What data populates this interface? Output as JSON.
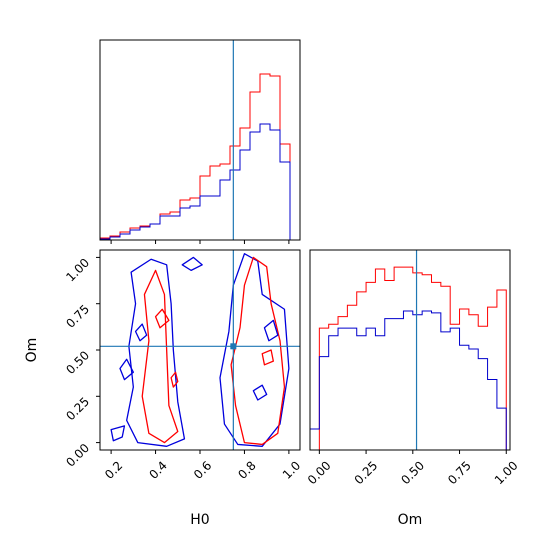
{
  "chart_data": [
    {
      "type": "histogram",
      "panel": "H0 marginal",
      "x_range": [
        0.15,
        1.05
      ],
      "truth": 0.75,
      "series": [
        {
          "color": "#ff0000",
          "bin_edges": [
            0.15,
            0.195,
            0.24,
            0.285,
            0.33,
            0.375,
            0.42,
            0.465,
            0.51,
            0.555,
            0.6,
            0.645,
            0.69,
            0.735,
            0.78,
            0.825,
            0.87,
            0.915,
            0.96,
            1.005
          ],
          "counts": [
            0.01,
            0.02,
            0.04,
            0.06,
            0.07,
            0.08,
            0.13,
            0.14,
            0.2,
            0.21,
            0.32,
            0.37,
            0.38,
            0.47,
            0.56,
            0.74,
            0.83,
            0.82,
            0.48
          ]
        },
        {
          "color": "#0000cc",
          "bin_edges": [
            0.15,
            0.195,
            0.24,
            0.285,
            0.33,
            0.375,
            0.42,
            0.465,
            0.51,
            0.555,
            0.6,
            0.645,
            0.69,
            0.735,
            0.78,
            0.825,
            0.87,
            0.915,
            0.96,
            1.005
          ],
          "counts": [
            0.005,
            0.015,
            0.03,
            0.05,
            0.065,
            0.08,
            0.12,
            0.12,
            0.16,
            0.17,
            0.22,
            0.22,
            0.3,
            0.35,
            0.45,
            0.54,
            0.58,
            0.55,
            0.39
          ]
        }
      ]
    },
    {
      "type": "contour",
      "panel": "H0 vs Om",
      "x_label": "H0",
      "y_label": "Om",
      "x_range": [
        0.15,
        1.05
      ],
      "y_range": [
        -0.04,
        1.04
      ],
      "x_ticks": [
        "0.2",
        "0.4",
        "0.6",
        "0.8",
        "1.0"
      ],
      "y_ticks": [
        "0.00",
        "0.25",
        "0.50",
        "0.75",
        "1.00"
      ],
      "truth": [
        0.75,
        0.52
      ],
      "contours": [
        {
          "color": "#0000dd",
          "points": [
            [
              0.32,
              0.0
            ],
            [
              0.27,
              0.12
            ],
            [
              0.3,
              0.3
            ],
            [
              0.28,
              0.52
            ],
            [
              0.31,
              0.75
            ],
            [
              0.29,
              0.92
            ],
            [
              0.38,
              0.99
            ],
            [
              0.45,
              0.96
            ],
            [
              0.47,
              0.75
            ],
            [
              0.48,
              0.5
            ],
            [
              0.5,
              0.22
            ],
            [
              0.53,
              0.02
            ],
            [
              0.45,
              -0.02
            ]
          ]
        },
        {
          "color": "#ff0000",
          "points": [
            [
              0.37,
              0.05
            ],
            [
              0.34,
              0.25
            ],
            [
              0.37,
              0.55
            ],
            [
              0.35,
              0.8
            ],
            [
              0.4,
              0.93
            ],
            [
              0.44,
              0.8
            ],
            [
              0.45,
              0.5
            ],
            [
              0.46,
              0.2
            ],
            [
              0.5,
              0.06
            ],
            [
              0.44,
              0.0
            ]
          ]
        },
        {
          "color": "#0000dd",
          "points": [
            [
              0.77,
              -0.01
            ],
            [
              0.71,
              0.1
            ],
            [
              0.69,
              0.35
            ],
            [
              0.73,
              0.6
            ],
            [
              0.75,
              0.85
            ],
            [
              0.8,
              1.02
            ],
            [
              0.86,
              0.98
            ],
            [
              0.88,
              0.8
            ],
            [
              0.98,
              0.72
            ],
            [
              1.0,
              0.4
            ],
            [
              0.96,
              0.1
            ],
            [
              0.88,
              -0.02
            ]
          ]
        },
        {
          "color": "#ff0000",
          "points": [
            [
              0.8,
              0.0
            ],
            [
              0.76,
              0.2
            ],
            [
              0.74,
              0.42
            ],
            [
              0.78,
              0.62
            ],
            [
              0.8,
              0.85
            ],
            [
              0.84,
              1.0
            ],
            [
              0.9,
              0.95
            ],
            [
              0.92,
              0.75
            ],
            [
              0.96,
              0.55
            ],
            [
              0.98,
              0.3
            ],
            [
              0.95,
              0.05
            ],
            [
              0.88,
              -0.01
            ]
          ]
        },
        {
          "color": "#0000dd",
          "points": [
            [
              0.89,
              0.62
            ],
            [
              0.93,
              0.66
            ],
            [
              0.95,
              0.58
            ],
            [
              0.91,
              0.55
            ]
          ]
        },
        {
          "color": "#ff0000",
          "points": [
            [
              0.88,
              0.48
            ],
            [
              0.92,
              0.5
            ],
            [
              0.93,
              0.44
            ],
            [
              0.89,
              0.42
            ]
          ]
        },
        {
          "color": "#0000dd",
          "points": [
            [
              0.84,
              0.28
            ],
            [
              0.88,
              0.31
            ],
            [
              0.9,
              0.26
            ],
            [
              0.86,
              0.23
            ]
          ]
        },
        {
          "color": "#ff0000",
          "points": [
            [
              0.4,
              0.68
            ],
            [
              0.43,
              0.72
            ],
            [
              0.46,
              0.66
            ],
            [
              0.42,
              0.62
            ]
          ]
        },
        {
          "color": "#0000dd",
          "points": [
            [
              0.24,
              0.4
            ],
            [
              0.27,
              0.45
            ],
            [
              0.3,
              0.38
            ],
            [
              0.26,
              0.34
            ]
          ]
        },
        {
          "color": "#0000dd",
          "points": [
            [
              0.2,
              0.07
            ],
            [
              0.26,
              0.09
            ],
            [
              0.25,
              0.03
            ],
            [
              0.21,
              0.01
            ]
          ]
        },
        {
          "color": "#0000dd",
          "points": [
            [
              0.52,
              0.96
            ],
            [
              0.57,
              1.0
            ],
            [
              0.61,
              0.96
            ],
            [
              0.56,
              0.93
            ]
          ]
        },
        {
          "color": "#0000dd",
          "points": [
            [
              0.31,
              0.6
            ],
            [
              0.34,
              0.64
            ],
            [
              0.36,
              0.58
            ],
            [
              0.33,
              0.55
            ]
          ]
        },
        {
          "color": "#ff0000",
          "points": [
            [
              0.47,
              0.35
            ],
            [
              0.49,
              0.38
            ],
            [
              0.5,
              0.33
            ],
            [
              0.48,
              0.3
            ]
          ]
        }
      ]
    },
    {
      "type": "histogram",
      "panel": "Om marginal",
      "x_label": "Om",
      "x_range": [
        -0.05,
        1.02
      ],
      "x_ticks": [
        "0.00",
        "0.25",
        "0.50",
        "0.75",
        "1.00"
      ],
      "truth": 0.52,
      "series": [
        {
          "color": "#ff0000",
          "bin_edges": [
            0.0,
            0.05,
            0.1,
            0.15,
            0.2,
            0.25,
            0.3,
            0.35,
            0.4,
            0.45,
            0.5,
            0.55,
            0.6,
            0.65,
            0.7,
            0.75,
            0.8,
            0.85,
            0.9,
            0.95,
            1.0
          ],
          "counts": [
            0.64,
            0.66,
            0.7,
            0.76,
            0.83,
            0.88,
            0.95,
            0.89,
            0.96,
            0.96,
            0.93,
            0.92,
            0.88,
            0.86,
            0.66,
            0.74,
            0.71,
            0.65,
            0.75,
            0.84
          ]
        },
        {
          "color": "#0000cc",
          "bin_edges": [
            -0.05,
            0.0,
            0.05,
            0.1,
            0.15,
            0.2,
            0.25,
            0.3,
            0.35,
            0.4,
            0.45,
            0.5,
            0.55,
            0.6,
            0.65,
            0.7,
            0.75,
            0.8,
            0.85,
            0.9,
            0.95,
            1.0
          ],
          "counts": [
            0.11,
            0.49,
            0.6,
            0.64,
            0.64,
            0.6,
            0.64,
            0.6,
            0.69,
            0.69,
            0.73,
            0.71,
            0.73,
            0.72,
            0.62,
            0.64,
            0.55,
            0.53,
            0.48,
            0.37,
            0.22
          ]
        }
      ]
    }
  ]
}
